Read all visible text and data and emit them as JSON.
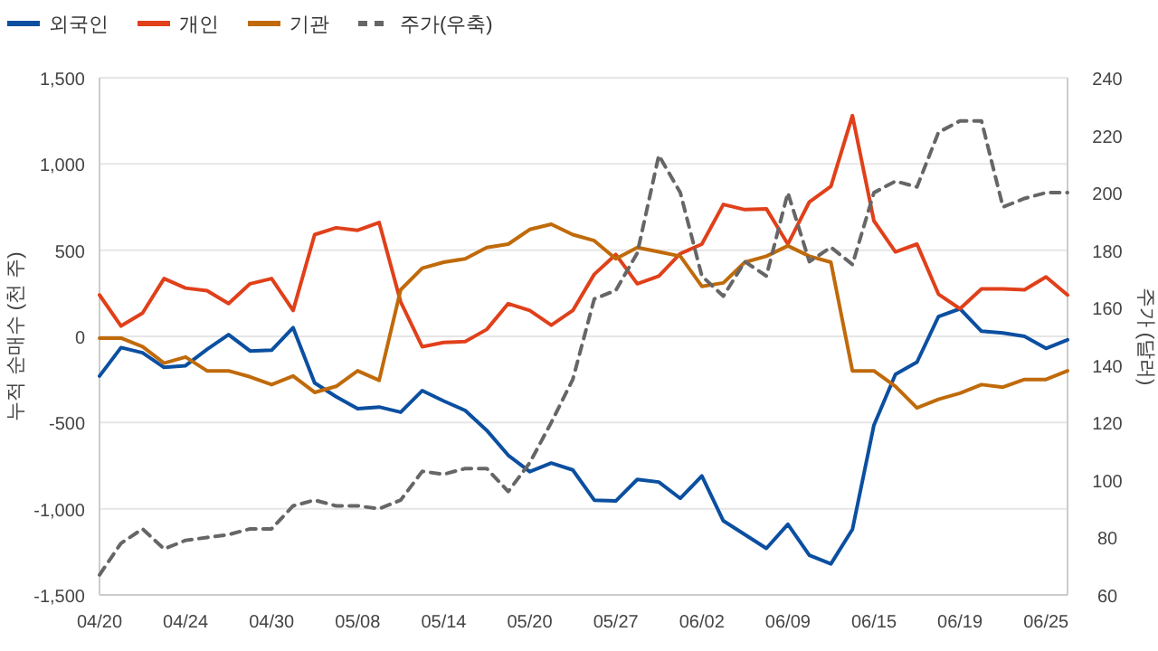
{
  "chart_data": {
    "type": "line",
    "ylabel": "누적 순매수 (천 주)",
    "y2label": "주가 (달러)",
    "categories": [
      "04/20",
      null,
      null,
      null,
      "04/24",
      null,
      null,
      null,
      "04/30",
      null,
      null,
      null,
      "05/08",
      null,
      null,
      null,
      "05/14",
      null,
      null,
      null,
      "05/20",
      null,
      null,
      null,
      "05/27",
      null,
      null,
      null,
      "06/02",
      null,
      null,
      null,
      "06/09",
      null,
      null,
      null,
      "06/15",
      null,
      null,
      null,
      "06/19",
      null,
      null,
      null,
      "06/25",
      null
    ],
    "series": [
      {
        "name": "외국인",
        "color": "#0b4fa0",
        "values": [
          -230,
          -65,
          -95,
          -180,
          -170,
          -75,
          10,
          -85,
          -80,
          50,
          -270,
          -350,
          -420,
          -410,
          -440,
          -315,
          -375,
          -430,
          -545,
          -690,
          -785,
          -735,
          -775,
          -950,
          -955,
          -830,
          -845,
          -940,
          -810,
          -1070,
          -1150,
          -1230,
          -1090,
          -1270,
          -1320,
          -1120,
          -515,
          -220,
          -150,
          115,
          160,
          30,
          20,
          0,
          -70,
          -20
        ]
      },
      {
        "name": "개인",
        "color": "#e0401a",
        "values": [
          240,
          60,
          135,
          335,
          280,
          265,
          190,
          305,
          335,
          150,
          590,
          630,
          615,
          660,
          200,
          -60,
          -35,
          -30,
          40,
          190,
          150,
          65,
          150,
          360,
          475,
          305,
          350,
          480,
          535,
          765,
          735,
          740,
          535,
          780,
          870,
          1280,
          670,
          490,
          535,
          245,
          160,
          275,
          275,
          270,
          345,
          240
        ]
      },
      {
        "name": "기관",
        "color": "#c06a0a",
        "values": [
          -10,
          -10,
          -60,
          -155,
          -120,
          -200,
          -200,
          -235,
          -280,
          -230,
          -325,
          -290,
          -200,
          -255,
          270,
          395,
          430,
          450,
          515,
          535,
          620,
          650,
          590,
          555,
          450,
          515,
          490,
          465,
          290,
          310,
          430,
          465,
          525,
          465,
          430,
          -200,
          -200,
          -290,
          -415,
          -365,
          -330,
          -280,
          -295,
          -250,
          -250,
          -200
        ]
      },
      {
        "name": "주가(우축)",
        "color": "#666666",
        "axis": "y2",
        "line_style": "dashed",
        "values": [
          67,
          78,
          83,
          76,
          79,
          80,
          81,
          83,
          83,
          91,
          93,
          91,
          91,
          90,
          93,
          103,
          102,
          104,
          104,
          96,
          106,
          120,
          135,
          163,
          166,
          179,
          213,
          200,
          171,
          164,
          176,
          171,
          200,
          176,
          181,
          175,
          200,
          204,
          202,
          221,
          225,
          225,
          195,
          198,
          200,
          200
        ]
      }
    ],
    "ylim": [
      -1500,
      1500
    ],
    "yticks": [
      {
        "value": -1500,
        "label": "-1,500"
      },
      {
        "value": -1000,
        "label": "-1,000"
      },
      -500,
      0,
      500,
      {
        "value": 1000,
        "label": "1,000"
      },
      {
        "value": 1500,
        "label": "1,500"
      }
    ],
    "y2lim": [
      60,
      240
    ],
    "y2ticks": [
      60,
      80,
      100,
      120,
      140,
      160,
      180,
      200,
      220,
      240
    ],
    "grid": "y",
    "legend": "top left",
    "marker": "none"
  }
}
